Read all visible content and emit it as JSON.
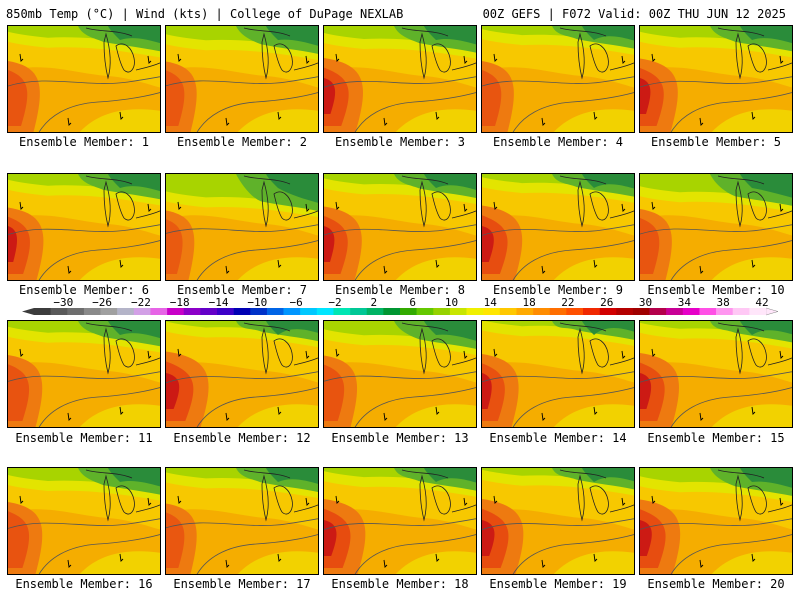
{
  "header": {
    "left_title": "850mb Temp (°C) | Wind (kts) | College of DuPage NEXLAB",
    "right_title": "00Z GEFS | F072 Valid: 00Z THU JUN 12 2025"
  },
  "panels": [
    {
      "label": "Ensemble Member: 1",
      "warm": 0.5,
      "cool": 0.45
    },
    {
      "label": "Ensemble Member: 2",
      "warm": 0.45,
      "cool": 0.55
    },
    {
      "label": "Ensemble Member: 3",
      "warm": 0.8,
      "cool": 0.5
    },
    {
      "label": "Ensemble Member: 4",
      "warm": 0.5,
      "cool": 0.35
    },
    {
      "label": "Ensemble Member: 5",
      "warm": 0.75,
      "cool": 0.45
    },
    {
      "label": "Ensemble Member: 6",
      "warm": 0.65,
      "cool": 0.45
    },
    {
      "label": "Ensemble Member: 7",
      "warm": 0.35,
      "cool": 0.9
    },
    {
      "label": "Ensemble Member: 8",
      "warm": 0.75,
      "cool": 0.4
    },
    {
      "label": "Ensemble Member: 9",
      "warm": 0.85,
      "cool": 0.35
    },
    {
      "label": "Ensemble Member: 10",
      "warm": 0.5,
      "cool": 0.7
    },
    {
      "label": "Ensemble Member: 11",
      "warm": 0.6,
      "cool": 0.45
    },
    {
      "label": "Ensemble Member: 12",
      "warm": 0.95,
      "cool": 0.25
    },
    {
      "label": "Ensemble Member: 13",
      "warm": 0.55,
      "cool": 0.55
    },
    {
      "label": "Ensemble Member: 14",
      "warm": 0.7,
      "cool": 0.2
    },
    {
      "label": "Ensemble Member: 15",
      "warm": 0.8,
      "cool": 0.3
    },
    {
      "label": "Ensemble Member: 16",
      "warm": 0.6,
      "cool": 0.5
    },
    {
      "label": "Ensemble Member: 17",
      "warm": 0.45,
      "cool": 0.4
    },
    {
      "label": "Ensemble Member: 18",
      "warm": 0.9,
      "cool": 0.35
    },
    {
      "label": "Ensemble Member: 19",
      "warm": 0.9,
      "cool": 0.3
    },
    {
      "label": "Ensemble Member: 20",
      "warm": 0.85,
      "cool": 0.55
    }
  ],
  "colorbar": {
    "ticks": [
      "-30",
      "-26",
      "-22",
      "-18",
      "-14",
      "-10",
      "-6",
      "-2",
      "2",
      "6",
      "10",
      "14",
      "18",
      "22",
      "26",
      "30",
      "34",
      "38",
      "42"
    ],
    "colors": [
      "#3c3c3c",
      "#5a5a5a",
      "#6e6e6e",
      "#8a8a8a",
      "#a0a0a0",
      "#b4b4c8",
      "#d2a0e6",
      "#e664e6",
      "#c800c8",
      "#8c00c8",
      "#6400c8",
      "#3c00c8",
      "#0000b4",
      "#0032c8",
      "#0064e6",
      "#0096ff",
      "#00c8ff",
      "#00e6ff",
      "#00e6b4",
      "#00c896",
      "#00b464",
      "#009632",
      "#32aa00",
      "#64c800",
      "#96d200",
      "#c8e600",
      "#f0f000",
      "#ffe600",
      "#ffc800",
      "#ffaa00",
      "#ff8c00",
      "#ff6e00",
      "#ff5000",
      "#f02800",
      "#d20000",
      "#b40000",
      "#a00000",
      "#b4004b",
      "#c80096",
      "#e600c8",
      "#ff50e6",
      "#ff96f0",
      "#ffc8f5",
      "#ffe6fa"
    ]
  }
}
